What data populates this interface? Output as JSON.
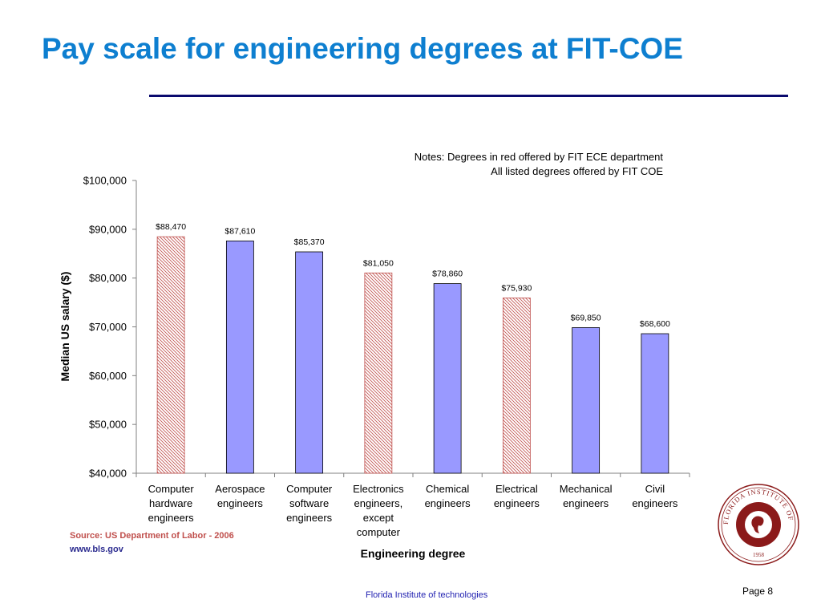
{
  "slide": {
    "title": "Pay scale for engineering degrees at FIT-COE",
    "notes": [
      "Notes: Degrees in red offered by FIT ECE department",
      "All listed degrees offered by FIT COE"
    ],
    "source_line1": "Source: US Department of Labor - 2006",
    "source_line2": "www.bls.gov",
    "footer": "Florida Institute of technologies",
    "page_label": "Page 8"
  },
  "colors": {
    "title": "#0e7fd0",
    "rule": "#0a0a6e",
    "blue_bar": "#9999ff",
    "red_hatch": "#c0504d",
    "source_red": "#c0504d",
    "source_blue": "#2b2b8f",
    "footer": "#1f1fb0",
    "seal_maroon": "#8b1a1a"
  },
  "seal": {
    "ring_text": "FLORIDA INSTITUTE OF TECHNOLOGY",
    "year": "1958"
  },
  "chart_data": {
    "type": "bar",
    "xlabel": "Engineering degree",
    "ylabel": "Median US salary ($)",
    "ylim": [
      40000,
      100000
    ],
    "yticks": [
      40000,
      50000,
      60000,
      70000,
      80000,
      90000,
      100000
    ],
    "ytick_labels": [
      "$40,000",
      "$50,000",
      "$60,000",
      "$70,000",
      "$80,000",
      "$90,000",
      "$100,000"
    ],
    "grid": false,
    "categories": [
      [
        "Computer",
        "hardware",
        "engineers"
      ],
      [
        "Aerospace",
        "engineers"
      ],
      [
        "Computer",
        "software",
        "engineers"
      ],
      [
        "Electronics",
        "engineers,",
        "except",
        "computer"
      ],
      [
        "Chemical",
        "engineers"
      ],
      [
        "Electrical",
        "engineers"
      ],
      [
        "Mechanical",
        "engineers"
      ],
      [
        "Civil",
        "engineers"
      ]
    ],
    "values": [
      88470,
      87610,
      85370,
      81050,
      78860,
      75930,
      69850,
      68600
    ],
    "data_labels": [
      "$88,470",
      "$87,610",
      "$85,370",
      "$81,050",
      "$78,860",
      "$75,930",
      "$69,850",
      "$68,600"
    ],
    "ece_department": [
      true,
      false,
      false,
      true,
      false,
      true,
      false,
      false
    ]
  }
}
